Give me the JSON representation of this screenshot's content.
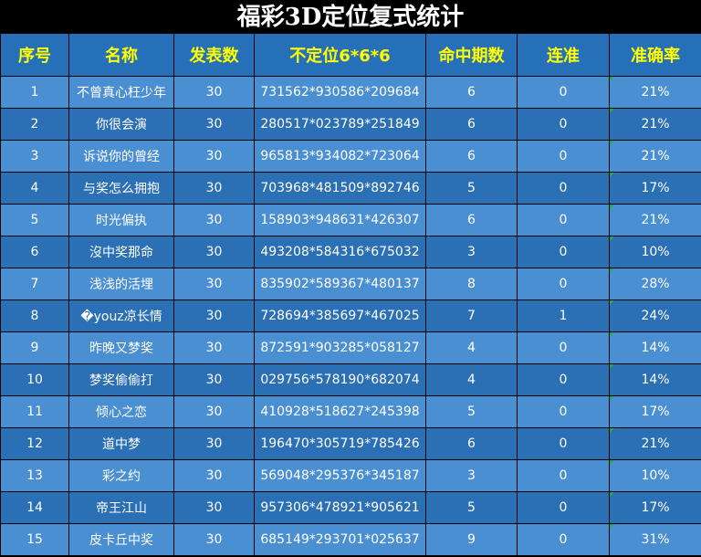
{
  "title": "福彩3D定位复式统计",
  "table": {
    "header": [
      "序号",
      "名称",
      "发表数",
      "不定位6*6*6",
      "命中期数",
      "连准",
      "准确率"
    ],
    "rows": [
      [
        "1",
        "不曾真心枉少年",
        "30",
        "731562*930586*209684",
        "6",
        "0",
        "21%"
      ],
      [
        "2",
        "你很会演",
        "30",
        "280517*023789*251849",
        "6",
        "0",
        "21%"
      ],
      [
        "3",
        "诉说你的曾经",
        "30",
        "965813*934082*723064",
        "6",
        "0",
        "21%"
      ],
      [
        "4",
        "与奖怎么拥抱",
        "30",
        "703968*481509*892746",
        "5",
        "0",
        "17%"
      ],
      [
        "5",
        "时光偏执",
        "30",
        "158903*948631*426307",
        "6",
        "0",
        "21%"
      ],
      [
        "6",
        "沒中奖那命",
        "30",
        "493208*584316*675032",
        "3",
        "0",
        "10%"
      ],
      [
        "7",
        "浅浅的活埋",
        "30",
        "835902*589367*480137",
        "8",
        "0",
        "28%"
      ],
      [
        "8",
        "�youz凉长情",
        "30",
        "728694*385697*467025",
        "7",
        "1",
        "24%"
      ],
      [
        "9",
        "昨晚又梦奖",
        "30",
        "872591*903285*058127",
        "4",
        "0",
        "14%"
      ],
      [
        "10",
        "梦奖偷偷打",
        "30",
        "029756*578190*682074",
        "4",
        "0",
        "14%"
      ],
      [
        "11",
        "倾心之恋",
        "30",
        "410928*518627*245398",
        "5",
        "0",
        "17%"
      ],
      [
        "12",
        "道中梦",
        "30",
        "196470*305719*785426",
        "6",
        "0",
        "21%"
      ],
      [
        "13",
        "彩之约",
        "30",
        "569048*295376*345187",
        "3",
        "0",
        "10%"
      ],
      [
        "14",
        "帝王江山",
        "30",
        "957306*478921*905621",
        "5",
        "0",
        "17%"
      ],
      [
        "15",
        "皮卡丘中奖",
        "30",
        "685149*293701*025637",
        "9",
        "0",
        "31%"
      ]
    ]
  }
}
